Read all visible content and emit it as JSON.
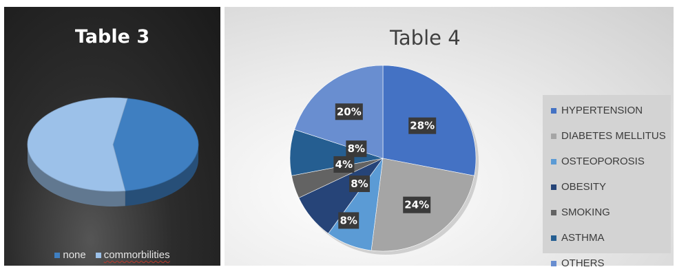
{
  "chart_data": [
    {
      "type": "pie",
      "style": "3d",
      "title": "Table 3",
      "categories": [
        "none",
        "commorbilities"
      ],
      "values": [
        45,
        55
      ],
      "colors": [
        "#3f7fc1",
        "#9cc1e9"
      ],
      "legend_position": "bottom"
    },
    {
      "type": "pie",
      "title": "Table 4",
      "categories": [
        "HYPERTENSION",
        "DIABETES MELLITUS",
        "OSTEOPOROSIS",
        "OBESITY",
        "SMOKING",
        "ASTHMA",
        "OTHERS"
      ],
      "values": [
        28,
        24,
        8,
        8,
        4,
        8,
        20
      ],
      "data_labels": [
        "28%",
        "24%",
        "8%",
        "8%",
        "4%",
        "8%",
        "20%"
      ],
      "colors": [
        "#4472c4",
        "#a5a5a5",
        "#5b9bd5",
        "#264478",
        "#636363",
        "#255e91",
        "#698ed0"
      ],
      "legend_position": "right"
    }
  ]
}
